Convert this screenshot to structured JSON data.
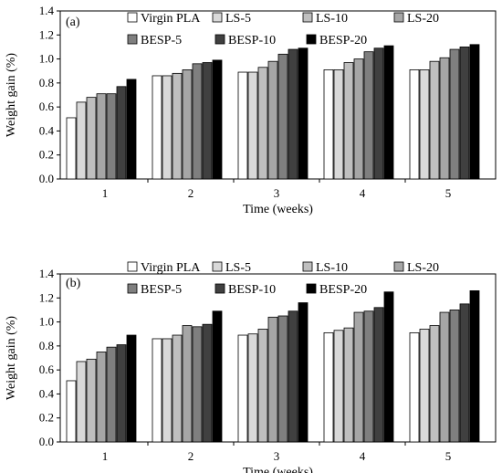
{
  "chart_data": [
    {
      "type": "bar",
      "panel_label": "(a)",
      "categories": [
        "1",
        "2",
        "3",
        "4",
        "5"
      ],
      "xlabel": "Time (weeks)",
      "ylabel": "Weight gain (%)",
      "ylim": [
        0,
        1.4
      ],
      "yticks": [
        "0.0",
        "0.2",
        "0.4",
        "0.6",
        "0.8",
        "1.0",
        "1.2",
        "1.4"
      ],
      "grid": false,
      "legend_position": "top",
      "series": [
        {
          "name": "Virgin PLA",
          "color": "#ffffff",
          "values": [
            0.51,
            0.86,
            0.89,
            0.91,
            0.91
          ]
        },
        {
          "name": "LS-5",
          "color": "#d9d9d9",
          "values": [
            0.64,
            0.86,
            0.89,
            0.91,
            0.91
          ]
        },
        {
          "name": "LS-10",
          "color": "#bfbfbf",
          "values": [
            0.68,
            0.88,
            0.93,
            0.97,
            0.98
          ]
        },
        {
          "name": "LS-20",
          "color": "#a6a6a6",
          "values": [
            0.71,
            0.91,
            0.98,
            1.0,
            1.01
          ]
        },
        {
          "name": "BESP-5",
          "color": "#7f7f7f",
          "values": [
            0.71,
            0.96,
            1.04,
            1.06,
            1.08
          ]
        },
        {
          "name": "BESP-10",
          "color": "#404040",
          "values": [
            0.77,
            0.97,
            1.08,
            1.09,
            1.1
          ]
        },
        {
          "name": "BESP-20",
          "color": "#000000",
          "values": [
            0.83,
            0.99,
            1.09,
            1.11,
            1.12
          ]
        }
      ]
    },
    {
      "type": "bar",
      "panel_label": "(b)",
      "categories": [
        "1",
        "2",
        "3",
        "4",
        "5"
      ],
      "xlabel": "Time (weeks)",
      "ylabel": "Weight gain (%)",
      "ylim": [
        0,
        1.4
      ],
      "yticks": [
        "0.0",
        "0.2",
        "0.4",
        "0.6",
        "0.8",
        "1.0",
        "1.2",
        "1.4"
      ],
      "grid": false,
      "legend_position": "top",
      "series": [
        {
          "name": "Virgin PLA",
          "color": "#ffffff",
          "values": [
            0.51,
            0.86,
            0.89,
            0.91,
            0.91
          ]
        },
        {
          "name": "LS-5",
          "color": "#d9d9d9",
          "values": [
            0.67,
            0.86,
            0.9,
            0.93,
            0.94
          ]
        },
        {
          "name": "LS-10",
          "color": "#bfbfbf",
          "values": [
            0.69,
            0.89,
            0.94,
            0.95,
            0.97
          ]
        },
        {
          "name": "LS-20",
          "color": "#a6a6a6",
          "values": [
            0.75,
            0.97,
            1.04,
            1.08,
            1.08
          ]
        },
        {
          "name": "BESP-5",
          "color": "#7f7f7f",
          "values": [
            0.79,
            0.96,
            1.05,
            1.09,
            1.1
          ]
        },
        {
          "name": "BESP-10",
          "color": "#404040",
          "values": [
            0.81,
            0.98,
            1.09,
            1.12,
            1.15
          ]
        },
        {
          "name": "BESP-20",
          "color": "#000000",
          "values": [
            0.89,
            1.09,
            1.16,
            1.25,
            1.26
          ]
        }
      ]
    }
  ]
}
